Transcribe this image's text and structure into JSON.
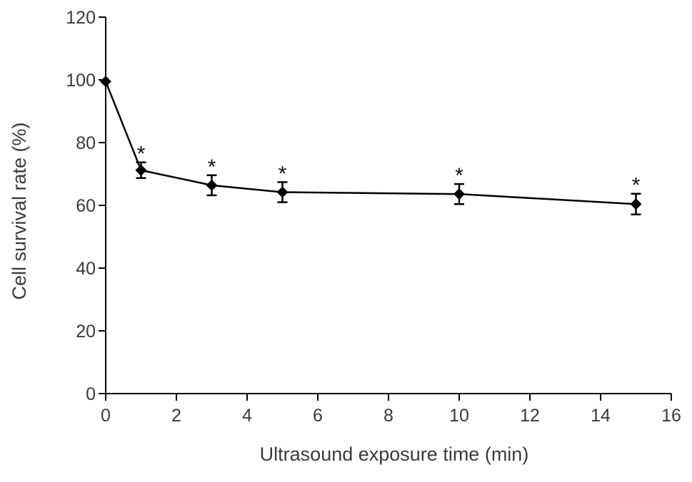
{
  "chart_data": {
    "type": "line",
    "title": "",
    "xlabel": "Ultrasound exposure time (min)",
    "ylabel": "Cell survival rate (%)",
    "xlim": [
      0,
      16
    ],
    "ylim": [
      0,
      120
    ],
    "xticks": [
      0,
      2,
      4,
      6,
      8,
      10,
      12,
      14,
      16
    ],
    "yticks": [
      0,
      20,
      40,
      60,
      80,
      100,
      120
    ],
    "grid": false,
    "legend": "none",
    "series": [
      {
        "x": [
          0,
          1,
          3,
          5,
          10,
          15
        ],
        "y": [
          99.5,
          71.2,
          66.4,
          64.2,
          63.6,
          60.4
        ],
        "error": [
          0,
          2.5,
          3.2,
          3.2,
          3.2,
          3.3
        ],
        "significance": [
          "",
          "*",
          "*",
          "*",
          "*",
          "*"
        ]
      }
    ],
    "colors": {
      "line": "#000000",
      "marker": "#000000",
      "axis": "#000000",
      "text": "#3a3a3a"
    }
  }
}
